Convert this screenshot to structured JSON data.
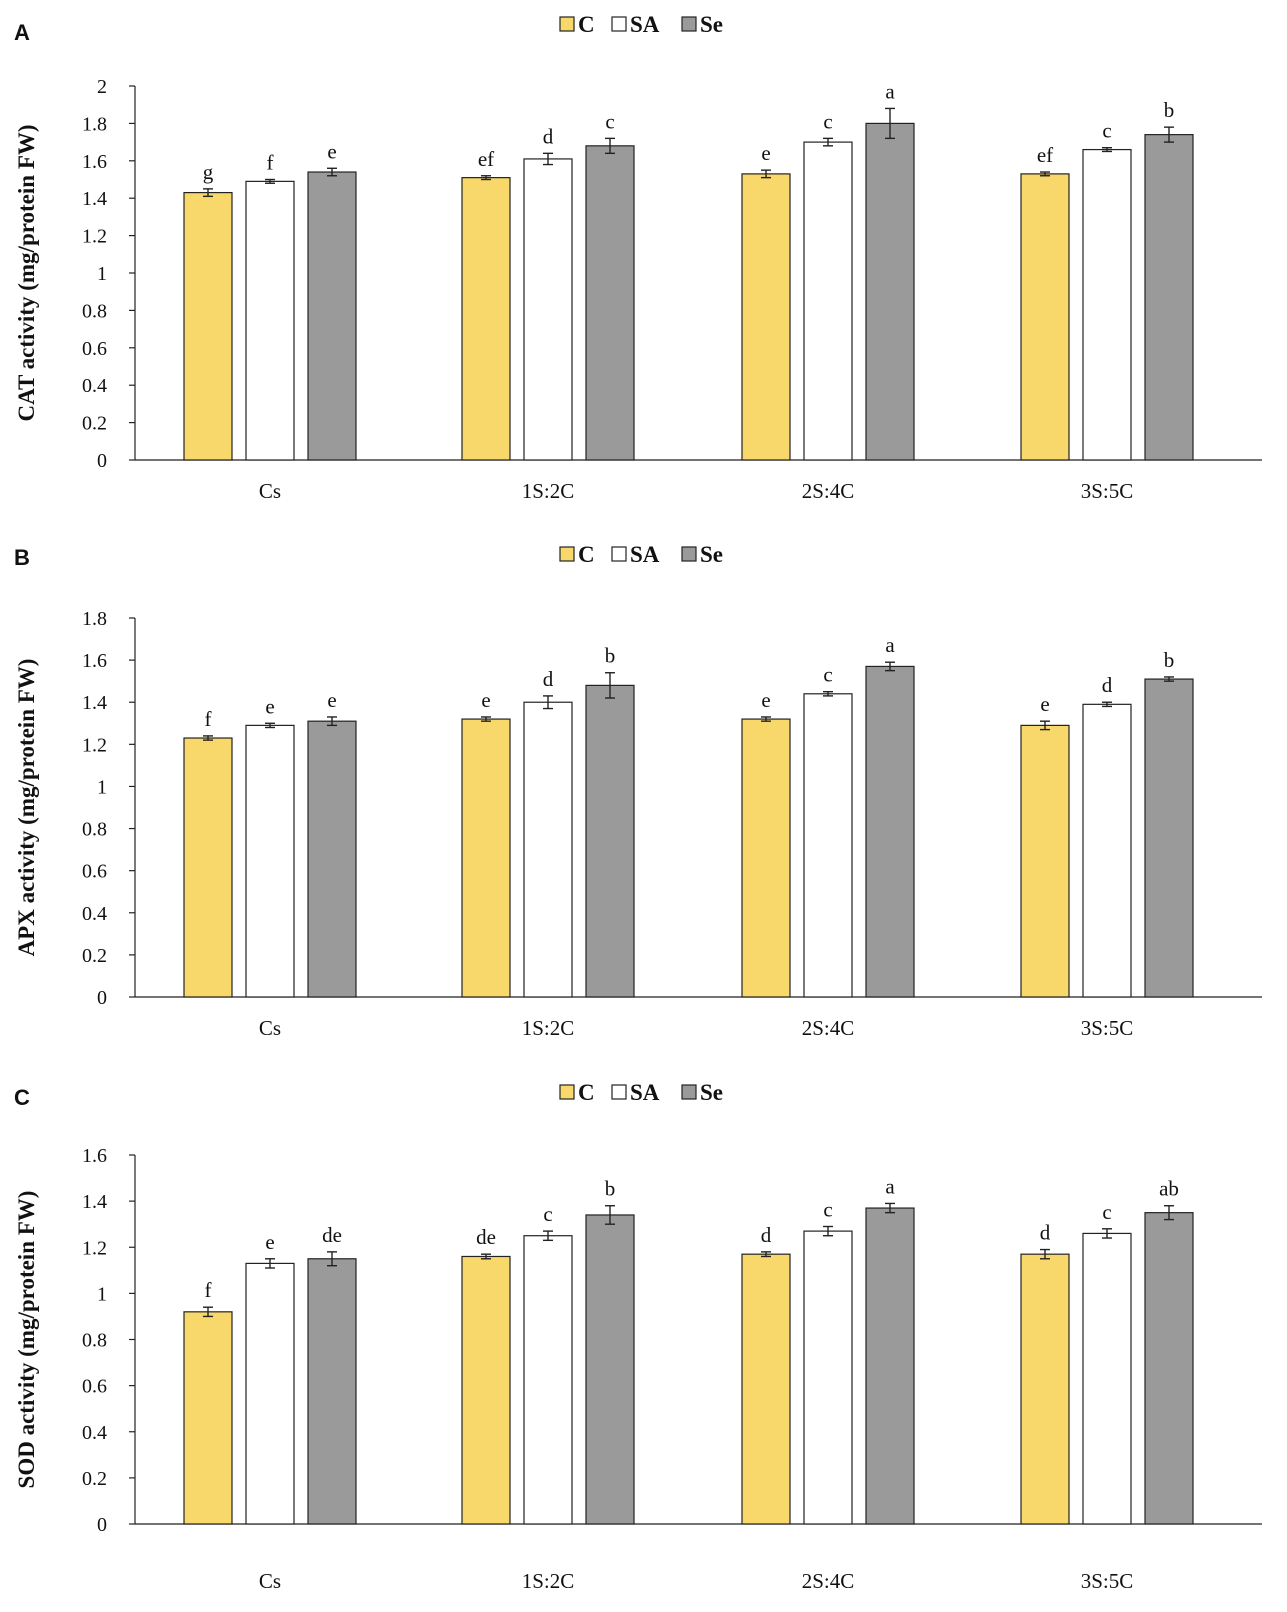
{
  "colors": {
    "C": "#F8D76B",
    "SA": "#FFFFFF",
    "Se": "#9A9A9A",
    "stroke": "#222222"
  },
  "legend": [
    {
      "key": "C",
      "label": "C"
    },
    {
      "key": "SA",
      "label": "SA"
    },
    {
      "key": "Se",
      "label": "Se"
    }
  ],
  "chart_data": [
    {
      "panel": "A",
      "type": "bar",
      "ylabel": "CAT activity (mg/protein FW)",
      "ylim": [
        0,
        2
      ],
      "yticks": [
        0,
        0.2,
        0.4,
        0.6,
        0.8,
        1,
        1.2,
        1.4,
        1.6,
        1.8,
        2
      ],
      "ytick_labels": [
        "0",
        "0.2",
        "0.4",
        "0.6",
        "0.8",
        "1",
        "1.2",
        "1.4",
        "1.6",
        "1.8",
        "2"
      ],
      "categories": [
        "Cs",
        "1S:2C",
        "2S:4C",
        "3S:5C"
      ],
      "series": [
        {
          "name": "C",
          "values": [
            1.43,
            1.51,
            1.53,
            1.53
          ],
          "errors": [
            0.02,
            0.01,
            0.02,
            0.01
          ],
          "letters": [
            "g",
            "ef",
            "e",
            "ef"
          ]
        },
        {
          "name": "SA",
          "values": [
            1.49,
            1.61,
            1.7,
            1.66
          ],
          "errors": [
            0.01,
            0.03,
            0.02,
            0.01
          ],
          "letters": [
            "f",
            "d",
            "c",
            "c"
          ]
        },
        {
          "name": "Se",
          "values": [
            1.54,
            1.68,
            1.8,
            1.74
          ],
          "errors": [
            0.02,
            0.04,
            0.08,
            0.04
          ],
          "letters": [
            "e",
            "c",
            "a",
            "b"
          ]
        }
      ]
    },
    {
      "panel": "B",
      "type": "bar",
      "ylabel": "APX activity (mg/protein FW)",
      "ylim": [
        0,
        1.8
      ],
      "yticks": [
        0,
        0.2,
        0.4,
        0.6,
        0.8,
        1,
        1.2,
        1.4,
        1.6,
        1.8
      ],
      "ytick_labels": [
        "0",
        "0.2",
        "0.4",
        "0.6",
        "0.8",
        "1",
        "1.2",
        "1.4",
        "1.6",
        "1.8"
      ],
      "categories": [
        "Cs",
        "1S:2C",
        "2S:4C",
        "3S:5C"
      ],
      "series": [
        {
          "name": "C",
          "values": [
            1.23,
            1.32,
            1.32,
            1.29
          ],
          "errors": [
            0.01,
            0.01,
            0.01,
            0.02
          ],
          "letters": [
            "f",
            "e",
            "e",
            "e"
          ]
        },
        {
          "name": "SA",
          "values": [
            1.29,
            1.4,
            1.44,
            1.39
          ],
          "errors": [
            0.01,
            0.03,
            0.01,
            0.01
          ],
          "letters": [
            "e",
            "d",
            "c",
            "d"
          ]
        },
        {
          "name": "Se",
          "values": [
            1.31,
            1.48,
            1.57,
            1.51
          ],
          "errors": [
            0.02,
            0.06,
            0.02,
            0.01
          ],
          "letters": [
            "e",
            "b",
            "a",
            "b"
          ]
        }
      ]
    },
    {
      "panel": "C",
      "type": "bar",
      "ylabel": "SOD activity (mg/protein FW)",
      "ylim": [
        0,
        1.6
      ],
      "yticks": [
        0,
        0.2,
        0.4,
        0.6,
        0.8,
        1,
        1.2,
        1.4,
        1.6
      ],
      "ytick_labels": [
        "0",
        "0.2",
        "0.4",
        "0.6",
        "0.8",
        "1",
        "1.2",
        "1.4",
        "1.6"
      ],
      "categories": [
        "Cs",
        "1S:2C",
        "2S:4C",
        "3S:5C"
      ],
      "series": [
        {
          "name": "C",
          "values": [
            0.92,
            1.16,
            1.17,
            1.17
          ],
          "errors": [
            0.02,
            0.01,
            0.01,
            0.02
          ],
          "letters": [
            "f",
            "de",
            "d",
            "d"
          ]
        },
        {
          "name": "SA",
          "values": [
            1.13,
            1.25,
            1.27,
            1.26
          ],
          "errors": [
            0.02,
            0.02,
            0.02,
            0.02
          ],
          "letters": [
            "e",
            "c",
            "c",
            "c"
          ]
        },
        {
          "name": "Se",
          "values": [
            1.15,
            1.34,
            1.37,
            1.35
          ],
          "errors": [
            0.03,
            0.04,
            0.02,
            0.03
          ],
          "letters": [
            "de",
            "b",
            "a",
            "ab"
          ]
        }
      ]
    }
  ]
}
